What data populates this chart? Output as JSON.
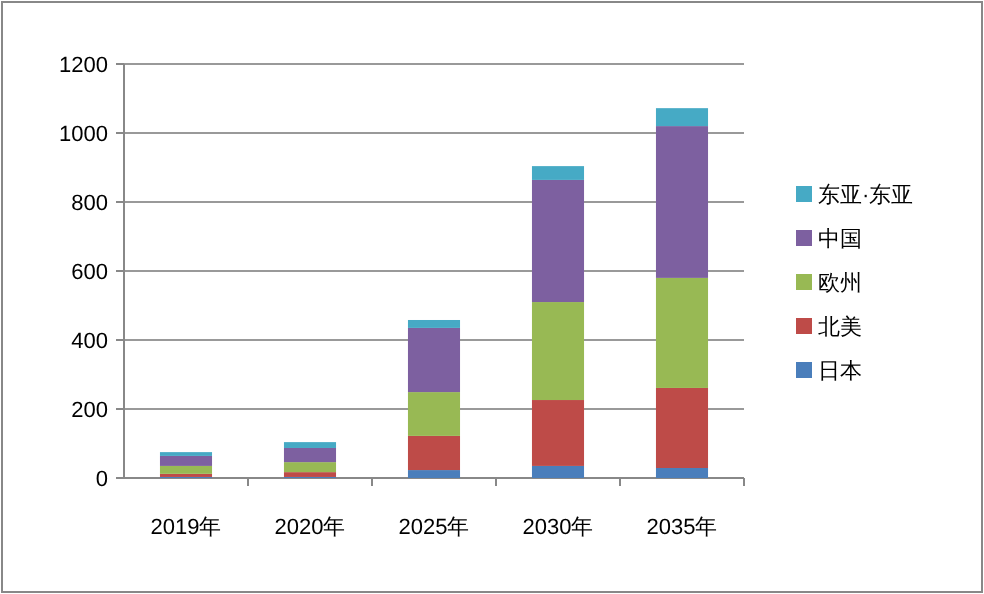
{
  "chart_data": {
    "type": "bar",
    "stacked": true,
    "categories": [
      "2019年",
      "2020年",
      "2025年",
      "2030年",
      "2035年"
    ],
    "series": [
      {
        "name": "日本",
        "color": "#4a7ebb",
        "values": [
          3,
          3,
          23,
          35,
          29
        ]
      },
      {
        "name": "北美",
        "color": "#be4b48",
        "values": [
          9,
          14,
          99,
          191,
          232
        ]
      },
      {
        "name": "欧州",
        "color": "#98b954",
        "values": [
          23,
          29,
          127,
          284,
          319
        ]
      },
      {
        "name": "中国",
        "color": "#7d60a0",
        "values": [
          29,
          41,
          186,
          354,
          440
        ]
      },
      {
        "name": "东亚·东亚",
        "color": "#46aac5",
        "values": [
          11,
          17,
          23,
          40,
          52
        ]
      }
    ],
    "ylim": [
      0,
      1200
    ],
    "yticks": [
      0,
      200,
      400,
      600,
      800,
      1000,
      1200
    ],
    "grid": "y",
    "legend": "right"
  }
}
